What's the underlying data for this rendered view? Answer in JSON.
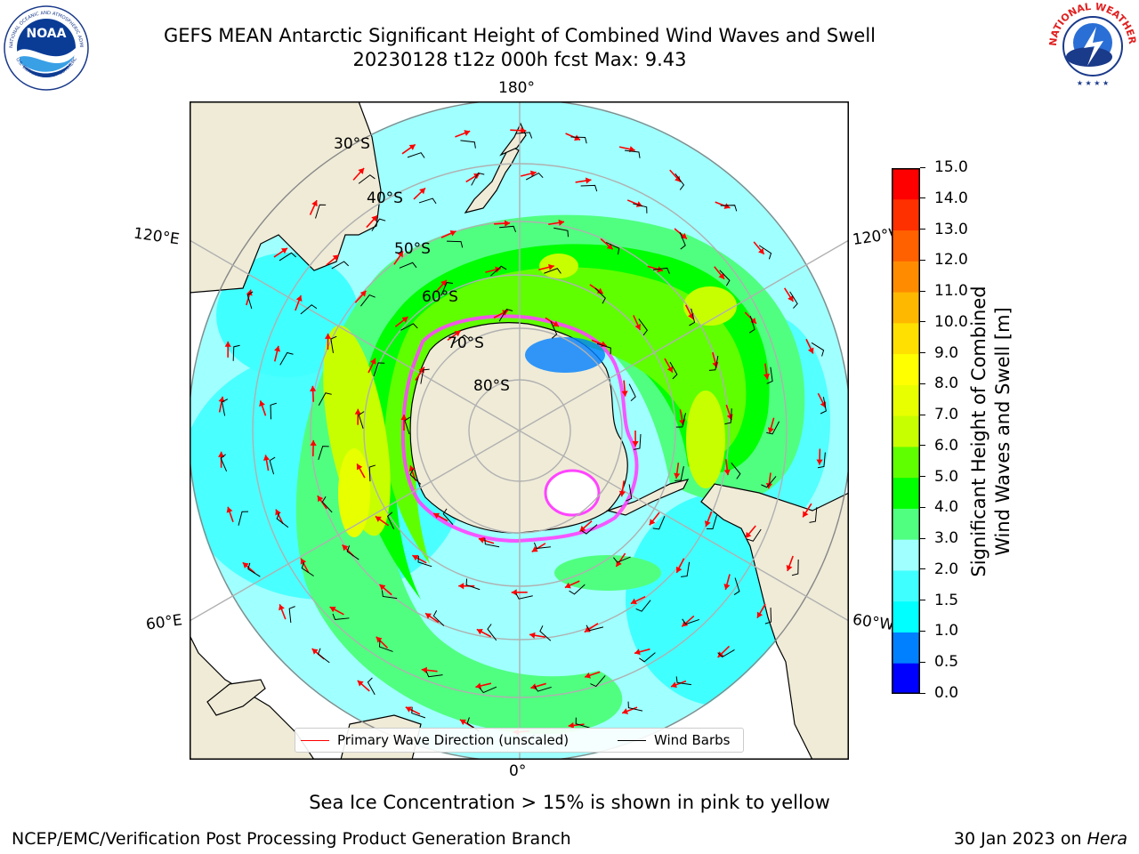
{
  "title_line1": "GEFS MEAN Antarctic Significant Height of Combined Wind Waves and Swell",
  "title_line2": "20230128 t12z 000h fcst   Max: 9.43",
  "logos": {
    "left": {
      "name": "NOAA",
      "ring_text": "NATIONAL OCEANIC AND ATMOSPHERIC ADMINISTRATION",
      "ring_text_bottom": "U.S. DEPARTMENT OF COMMERCE",
      "center_text": "NOAA"
    },
    "right": {
      "name": "National Weather Service",
      "ring_text": "NATIONAL WEATHER SERVICE"
    }
  },
  "map": {
    "projection": "South Polar Stereographic",
    "longitude_labels": {
      "top": "180°",
      "bottom": "0°",
      "upper_left": "120°E",
      "upper_right": "120°W",
      "lower_left": "60°E",
      "lower_right": "60°W"
    },
    "latitude_labels": [
      "30°S",
      "40°S",
      "50°S",
      "60°S",
      "70°S",
      "80°S"
    ],
    "colors": {
      "land": "#efebd7",
      "ocean_low": "#00ffff",
      "ice": "#ff44ff",
      "wave_arrow": "#ff0000",
      "barb": "#000000"
    }
  },
  "colorbar": {
    "title_line1": "Significant Height of Combined",
    "title_line2": "Wind Waves and Swell [m]",
    "ticks": [
      "0.0",
      "0.5",
      "1.0",
      "1.5",
      "2.0",
      "3.0",
      "4.0",
      "5.0",
      "6.0",
      "7.0",
      "8.0",
      "9.0",
      "10.0",
      "11.0",
      "12.0",
      "13.0",
      "14.0",
      "15.0"
    ],
    "colors": [
      "#0000ff",
      "#0080ff",
      "#00ffff",
      "#40ffff",
      "#a0ffff",
      "#50ff80",
      "#00ff00",
      "#60ff00",
      "#c8ff00",
      "#e8ff00",
      "#ffff00",
      "#ffe000",
      "#ffb800",
      "#ff8c00",
      "#ff6000",
      "#ff3000",
      "#ff0000"
    ]
  },
  "legend": {
    "primary_wave": "Primary Wave Direction (unscaled)",
    "wind_barbs": "Wind Barbs"
  },
  "caption": "Sea Ice Concentration > 15% is shown in pink to yellow",
  "footer_left": "NCEP/EMC/Verification Post Processing Product Generation Branch",
  "footer_right_date": "30 Jan 2023 on ",
  "footer_right_host": "Hera"
}
